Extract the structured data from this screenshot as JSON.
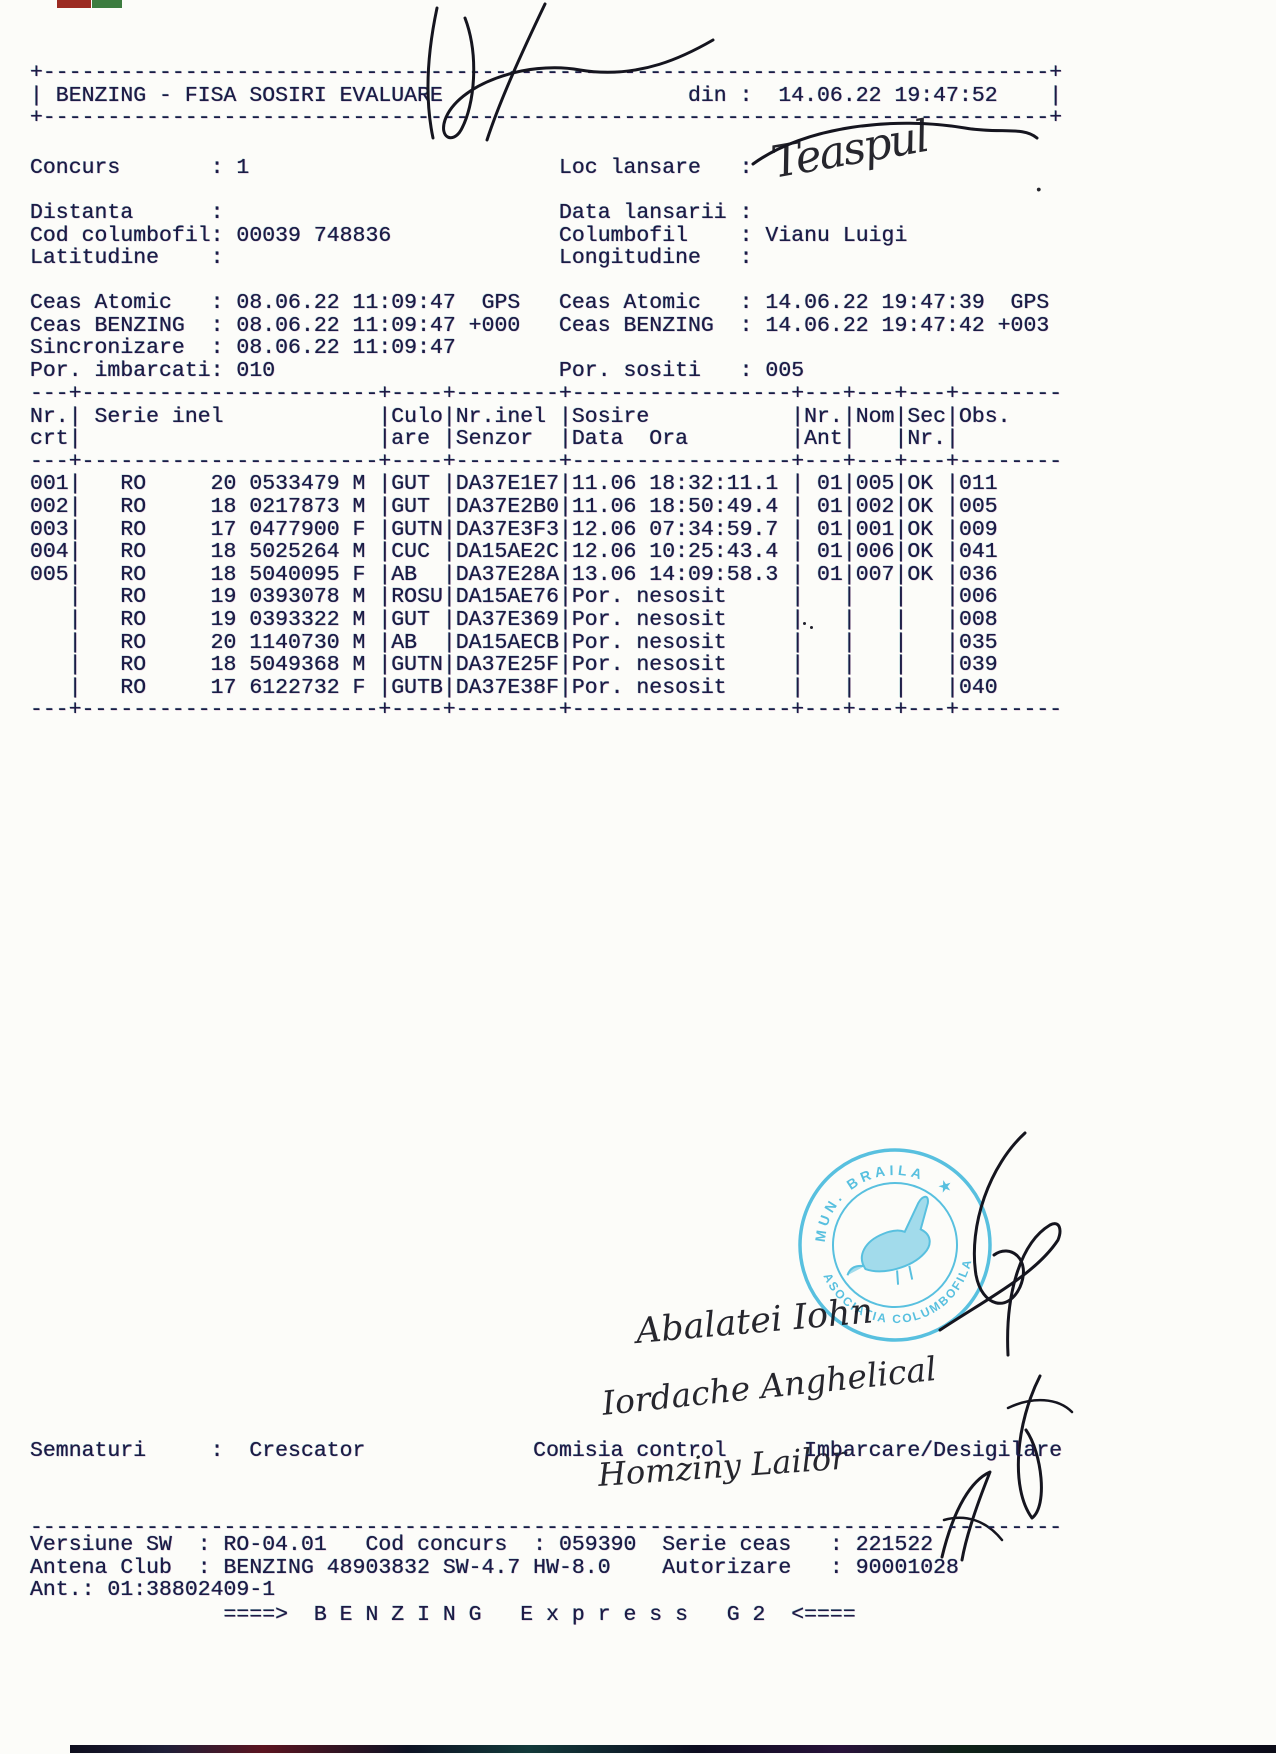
{
  "page": {
    "ink_color": "#1b1b45",
    "stamp_color": "#35b3da",
    "paper_color": "#fcfcf9"
  },
  "grid": {
    "width": 80,
    "col_breaks": [
      3,
      27,
      32,
      41,
      59,
      63,
      67,
      71
    ]
  },
  "header": {
    "title": "BENZING - FISA SOSIRI EVALUARE",
    "din_label": "din :",
    "din_value": "14.06.22 19:47:52",
    "lines": [
      "@BORDER",
      [
        {
          "c": 0,
          "t": "|"
        },
        {
          "c": 2,
          "t": "BENZING - FISA SOSIRI EVALUARE"
        },
        {
          "c": 51,
          "t": "din :"
        },
        {
          "c": 58,
          "t": "14.06.22 19:47:52"
        },
        {
          "c": 79,
          "t": "|"
        }
      ],
      "@BORDER"
    ]
  },
  "info": {
    "concurs": "1",
    "cod_columbofil": "00039 748836",
    "columbofil": "Vianu Luigi",
    "lines": [
      [
        {
          "c": 0,
          "t": "Concurs"
        },
        {
          "c": 14,
          "t": ": 1"
        },
        {
          "c": 41,
          "t": "Loc lansare   :"
        }
      ],
      "",
      [
        {
          "c": 0,
          "t": "Distanta"
        },
        {
          "c": 14,
          "t": ":"
        },
        {
          "c": 41,
          "t": "Data lansarii :"
        }
      ],
      [
        {
          "c": 0,
          "t": "Cod columbofil"
        },
        {
          "c": 14,
          "t": ": 00039 748836"
        },
        {
          "c": 41,
          "t": "Columbofil    : Vianu Luigi"
        }
      ],
      [
        {
          "c": 0,
          "t": "Latitudine"
        },
        {
          "c": 14,
          "t": ":"
        },
        {
          "c": 41,
          "t": "Longitudine   :"
        }
      ]
    ]
  },
  "clocks": {
    "ceas_atomic_start": "08.06.22 11:09:47 GPS",
    "ceas_benzing_start": "08.06.22 11:09:47 +000",
    "sincronizare": "08.06.22 11:09:47",
    "ceas_atomic_end": "14.06.22 19:47:39 GPS",
    "ceas_benzing_end": "14.06.22 19:47:42 +003",
    "por_imbarcati": "010",
    "por_sositi": "005",
    "lines": [
      [
        {
          "c": 0,
          "t": "Ceas Atomic"
        },
        {
          "c": 14,
          "t": ": 08.06.22 11:09:47  GPS"
        },
        {
          "c": 41,
          "t": "Ceas Atomic   : 14.06.22 19:47:39  GPS"
        }
      ],
      [
        {
          "c": 0,
          "t": "Ceas BENZING"
        },
        {
          "c": 14,
          "t": ": 08.06.22 11:09:47 +000"
        },
        {
          "c": 41,
          "t": "Ceas BENZING  : 14.06.22 19:47:42 +003"
        }
      ],
      [
        {
          "c": 0,
          "t": "Sincronizare"
        },
        {
          "c": 14,
          "t": ": 08.06.22 11:09:47"
        }
      ],
      [
        {
          "c": 0,
          "t": "Por. imbarcati"
        },
        {
          "c": 14,
          "t": ": 010"
        },
        {
          "c": 41,
          "t": "Por. sositi   : 005"
        }
      ]
    ]
  },
  "table": {
    "columns": [
      "Nr. crt",
      "Serie inel",
      "Culoare",
      "Nr.inel Senzor",
      "Sosire Data Ora",
      "Nr. Ant",
      "Nom",
      "Sec Nr.",
      "Obs."
    ],
    "separator_lines": [
      "@SEP"
    ],
    "header_lines": [
      [
        {
          "c": 0,
          "t": "Nr."
        },
        {
          "c": 3,
          "t": "|"
        },
        {
          "c": 5,
          "t": "Serie inel"
        },
        {
          "c": 27,
          "t": "|"
        },
        {
          "c": 28,
          "t": "Culo"
        },
        {
          "c": 32,
          "t": "|"
        },
        {
          "c": 33,
          "t": "Nr.inel"
        },
        {
          "c": 41,
          "t": "|"
        },
        {
          "c": 42,
          "t": "Sosire"
        },
        {
          "c": 59,
          "t": "|"
        },
        {
          "c": 60,
          "t": "Nr."
        },
        {
          "c": 63,
          "t": "|"
        },
        {
          "c": 64,
          "t": "Nom"
        },
        {
          "c": 67,
          "t": "|"
        },
        {
          "c": 68,
          "t": "Sec"
        },
        {
          "c": 71,
          "t": "|"
        },
        {
          "c": 72,
          "t": "Obs."
        }
      ],
      [
        {
          "c": 0,
          "t": "crt"
        },
        {
          "c": 3,
          "t": "|"
        },
        {
          "c": 27,
          "t": "|"
        },
        {
          "c": 28,
          "t": "are"
        },
        {
          "c": 32,
          "t": "|"
        },
        {
          "c": 33,
          "t": "Senzor"
        },
        {
          "c": 41,
          "t": "|"
        },
        {
          "c": 42,
          "t": "Data  Ora"
        },
        {
          "c": 59,
          "t": "|"
        },
        {
          "c": 60,
          "t": "Ant"
        },
        {
          "c": 63,
          "t": "|"
        },
        {
          "c": 67,
          "t": "|"
        },
        {
          "c": 68,
          "t": "Nr."
        },
        {
          "c": 71,
          "t": "|"
        }
      ]
    ],
    "rows": [
      [
        {
          "c": 0,
          "t": "001"
        },
        {
          "c": 3,
          "t": "|"
        },
        {
          "c": 7,
          "t": "RO"
        },
        {
          "c": 14,
          "t": "20"
        },
        {
          "c": 17,
          "t": "0533479"
        },
        {
          "c": 25,
          "t": "M"
        },
        {
          "c": 27,
          "t": "|"
        },
        {
          "c": 28,
          "t": "GUT"
        },
        {
          "c": 32,
          "t": "|"
        },
        {
          "c": 33,
          "t": "DA37E1E7"
        },
        {
          "c": 41,
          "t": "|"
        },
        {
          "c": 42,
          "t": "11.06 18:32:11.1"
        },
        {
          "c": 59,
          "t": "|"
        },
        {
          "c": 61,
          "t": "01"
        },
        {
          "c": 63,
          "t": "|"
        },
        {
          "c": 64,
          "t": "005"
        },
        {
          "c": 67,
          "t": "|"
        },
        {
          "c": 68,
          "t": "OK"
        },
        {
          "c": 71,
          "t": "|"
        },
        {
          "c": 72,
          "t": "011"
        }
      ],
      [
        {
          "c": 0,
          "t": "002"
        },
        {
          "c": 3,
          "t": "|"
        },
        {
          "c": 7,
          "t": "RO"
        },
        {
          "c": 14,
          "t": "18"
        },
        {
          "c": 17,
          "t": "0217873"
        },
        {
          "c": 25,
          "t": "M"
        },
        {
          "c": 27,
          "t": "|"
        },
        {
          "c": 28,
          "t": "GUT"
        },
        {
          "c": 32,
          "t": "|"
        },
        {
          "c": 33,
          "t": "DA37E2B0"
        },
        {
          "c": 41,
          "t": "|"
        },
        {
          "c": 42,
          "t": "11.06 18:50:49.4"
        },
        {
          "c": 59,
          "t": "|"
        },
        {
          "c": 61,
          "t": "01"
        },
        {
          "c": 63,
          "t": "|"
        },
        {
          "c": 64,
          "t": "002"
        },
        {
          "c": 67,
          "t": "|"
        },
        {
          "c": 68,
          "t": "OK"
        },
        {
          "c": 71,
          "t": "|"
        },
        {
          "c": 72,
          "t": "005"
        }
      ],
      [
        {
          "c": 0,
          "t": "003"
        },
        {
          "c": 3,
          "t": "|"
        },
        {
          "c": 7,
          "t": "RO"
        },
        {
          "c": 14,
          "t": "17"
        },
        {
          "c": 17,
          "t": "0477900"
        },
        {
          "c": 25,
          "t": "F"
        },
        {
          "c": 27,
          "t": "|"
        },
        {
          "c": 28,
          "t": "GUTN"
        },
        {
          "c": 32,
          "t": "|"
        },
        {
          "c": 33,
          "t": "DA37E3F3"
        },
        {
          "c": 41,
          "t": "|"
        },
        {
          "c": 42,
          "t": "12.06 07:34:59.7"
        },
        {
          "c": 59,
          "t": "|"
        },
        {
          "c": 61,
          "t": "01"
        },
        {
          "c": 63,
          "t": "|"
        },
        {
          "c": 64,
          "t": "001"
        },
        {
          "c": 67,
          "t": "|"
        },
        {
          "c": 68,
          "t": "OK"
        },
        {
          "c": 71,
          "t": "|"
        },
        {
          "c": 72,
          "t": "009"
        }
      ],
      [
        {
          "c": 0,
          "t": "004"
        },
        {
          "c": 3,
          "t": "|"
        },
        {
          "c": 7,
          "t": "RO"
        },
        {
          "c": 14,
          "t": "18"
        },
        {
          "c": 17,
          "t": "5025264"
        },
        {
          "c": 25,
          "t": "M"
        },
        {
          "c": 27,
          "t": "|"
        },
        {
          "c": 28,
          "t": "CUC"
        },
        {
          "c": 32,
          "t": "|"
        },
        {
          "c": 33,
          "t": "DA15AE2C"
        },
        {
          "c": 41,
          "t": "|"
        },
        {
          "c": 42,
          "t": "12.06 10:25:43.4"
        },
        {
          "c": 59,
          "t": "|"
        },
        {
          "c": 61,
          "t": "01"
        },
        {
          "c": 63,
          "t": "|"
        },
        {
          "c": 64,
          "t": "006"
        },
        {
          "c": 67,
          "t": "|"
        },
        {
          "c": 68,
          "t": "OK"
        },
        {
          "c": 71,
          "t": "|"
        },
        {
          "c": 72,
          "t": "041"
        }
      ],
      [
        {
          "c": 0,
          "t": "005"
        },
        {
          "c": 3,
          "t": "|"
        },
        {
          "c": 7,
          "t": "RO"
        },
        {
          "c": 14,
          "t": "18"
        },
        {
          "c": 17,
          "t": "5040095"
        },
        {
          "c": 25,
          "t": "F"
        },
        {
          "c": 27,
          "t": "|"
        },
        {
          "c": 28,
          "t": "AB"
        },
        {
          "c": 32,
          "t": "|"
        },
        {
          "c": 33,
          "t": "DA37E28A"
        },
        {
          "c": 41,
          "t": "|"
        },
        {
          "c": 42,
          "t": "13.06 14:09:58.3"
        },
        {
          "c": 59,
          "t": "|"
        },
        {
          "c": 61,
          "t": "01"
        },
        {
          "c": 63,
          "t": "|"
        },
        {
          "c": 64,
          "t": "007"
        },
        {
          "c": 67,
          "t": "|"
        },
        {
          "c": 68,
          "t": "OK"
        },
        {
          "c": 71,
          "t": "|"
        },
        {
          "c": 72,
          "t": "036"
        }
      ],
      [
        {
          "c": 3,
          "t": "|"
        },
        {
          "c": 7,
          "t": "RO"
        },
        {
          "c": 14,
          "t": "19"
        },
        {
          "c": 17,
          "t": "0393078"
        },
        {
          "c": 25,
          "t": "M"
        },
        {
          "c": 27,
          "t": "|"
        },
        {
          "c": 28,
          "t": "ROSU"
        },
        {
          "c": 32,
          "t": "|"
        },
        {
          "c": 33,
          "t": "DA15AE76"
        },
        {
          "c": 41,
          "t": "|"
        },
        {
          "c": 42,
          "t": "Por. nesosit"
        },
        {
          "c": 59,
          "t": "|"
        },
        {
          "c": 63,
          "t": "|"
        },
        {
          "c": 67,
          "t": "|"
        },
        {
          "c": 71,
          "t": "|"
        },
        {
          "c": 72,
          "t": "006"
        }
      ],
      [
        {
          "c": 3,
          "t": "|"
        },
        {
          "c": 7,
          "t": "RO"
        },
        {
          "c": 14,
          "t": "19"
        },
        {
          "c": 17,
          "t": "0393322"
        },
        {
          "c": 25,
          "t": "M"
        },
        {
          "c": 27,
          "t": "|"
        },
        {
          "c": 28,
          "t": "GUT"
        },
        {
          "c": 32,
          "t": "|"
        },
        {
          "c": 33,
          "t": "DA37E369"
        },
        {
          "c": 41,
          "t": "|"
        },
        {
          "c": 42,
          "t": "Por. nesosit"
        },
        {
          "c": 59,
          "t": "|"
        },
        {
          "c": 63,
          "t": "|"
        },
        {
          "c": 67,
          "t": "|"
        },
        {
          "c": 71,
          "t": "|"
        },
        {
          "c": 72,
          "t": "008"
        }
      ],
      [
        {
          "c": 3,
          "t": "|"
        },
        {
          "c": 7,
          "t": "RO"
        },
        {
          "c": 14,
          "t": "20"
        },
        {
          "c": 17,
          "t": "1140730"
        },
        {
          "c": 25,
          "t": "M"
        },
        {
          "c": 27,
          "t": "|"
        },
        {
          "c": 28,
          "t": "AB"
        },
        {
          "c": 32,
          "t": "|"
        },
        {
          "c": 33,
          "t": "DA15AECB"
        },
        {
          "c": 41,
          "t": "|"
        },
        {
          "c": 42,
          "t": "Por. nesosit"
        },
        {
          "c": 59,
          "t": "|"
        },
        {
          "c": 63,
          "t": "|"
        },
        {
          "c": 67,
          "t": "|"
        },
        {
          "c": 71,
          "t": "|"
        },
        {
          "c": 72,
          "t": "035"
        }
      ],
      [
        {
          "c": 3,
          "t": "|"
        },
        {
          "c": 7,
          "t": "RO"
        },
        {
          "c": 14,
          "t": "18"
        },
        {
          "c": 17,
          "t": "5049368"
        },
        {
          "c": 25,
          "t": "M"
        },
        {
          "c": 27,
          "t": "|"
        },
        {
          "c": 28,
          "t": "GUTN"
        },
        {
          "c": 32,
          "t": "|"
        },
        {
          "c": 33,
          "t": "DA37E25F"
        },
        {
          "c": 41,
          "t": "|"
        },
        {
          "c": 42,
          "t": "Por. nesosit"
        },
        {
          "c": 59,
          "t": "|"
        },
        {
          "c": 63,
          "t": "|"
        },
        {
          "c": 67,
          "t": "|"
        },
        {
          "c": 71,
          "t": "|"
        },
        {
          "c": 72,
          "t": "039"
        }
      ],
      [
        {
          "c": 3,
          "t": "|"
        },
        {
          "c": 7,
          "t": "RO"
        },
        {
          "c": 14,
          "t": "17"
        },
        {
          "c": 17,
          "t": "6122732"
        },
        {
          "c": 25,
          "t": "F"
        },
        {
          "c": 27,
          "t": "|"
        },
        {
          "c": 28,
          "t": "GUTB"
        },
        {
          "c": 32,
          "t": "|"
        },
        {
          "c": 33,
          "t": "DA37E38F"
        },
        {
          "c": 41,
          "t": "|"
        },
        {
          "c": 42,
          "t": "Por. nesosit"
        },
        {
          "c": 59,
          "t": "|"
        },
        {
          "c": 63,
          "t": "|"
        },
        {
          "c": 67,
          "t": "|"
        },
        {
          "c": 71,
          "t": "|"
        },
        {
          "c": 72,
          "t": "040"
        }
      ]
    ]
  },
  "semnaturi": {
    "lines": [
      [
        {
          "c": 0,
          "t": "Semnaturi"
        },
        {
          "c": 14,
          "t": ":"
        },
        {
          "c": 17,
          "t": "Crescator"
        },
        {
          "c": 39,
          "t": "Comisia control"
        },
        {
          "c": 60,
          "t": "Imbarcare/Desigilare"
        }
      ]
    ]
  },
  "signatures": {
    "loc_lansare": "Teaspul",
    "loc_lansare_dot": ".",
    "line1": "Abalatei Iohn",
    "line2": "Iordache Anghelical",
    "line3": "Homziny Lailor"
  },
  "stamp": {
    "arc_top": "MUN. BRAILA",
    "arc_bottom": "ASOCIATIA COLUMBOFILA",
    "star": "★"
  },
  "footer": {
    "versiune_sw": "RO-04.01",
    "cod_concurs": "059390",
    "serie_ceas": "221522",
    "antena_club": "BENZING 48903832 SW-4.7 HW-8.0",
    "autorizare": "90001028",
    "ant": "01:38802409-1",
    "sep_lines": [
      "@DASHES"
    ],
    "lines": [
      [
        {
          "c": 0,
          "t": "Versiune SW"
        },
        {
          "c": 13,
          "t": ": RO-04.01"
        },
        {
          "c": 26,
          "t": "Cod concurs"
        },
        {
          "c": 39,
          "t": ": 059390"
        },
        {
          "c": 49,
          "t": "Serie ceas"
        },
        {
          "c": 62,
          "t": ": 221522"
        }
      ],
      [
        {
          "c": 0,
          "t": "Antena Club"
        },
        {
          "c": 13,
          "t": ": BENZING 48903832 SW-4.7 HW-8.0"
        },
        {
          "c": 49,
          "t": "Autorizare"
        },
        {
          "c": 62,
          "t": ": 90001028"
        }
      ],
      [
        {
          "c": 0,
          "t": "Ant.: 01:38802409-1"
        }
      ]
    ],
    "express_lines": [
      [
        {
          "c": 15,
          "t": "====>  B E N Z I N G   E x p r e s s   G 2  <===="
        }
      ]
    ]
  }
}
